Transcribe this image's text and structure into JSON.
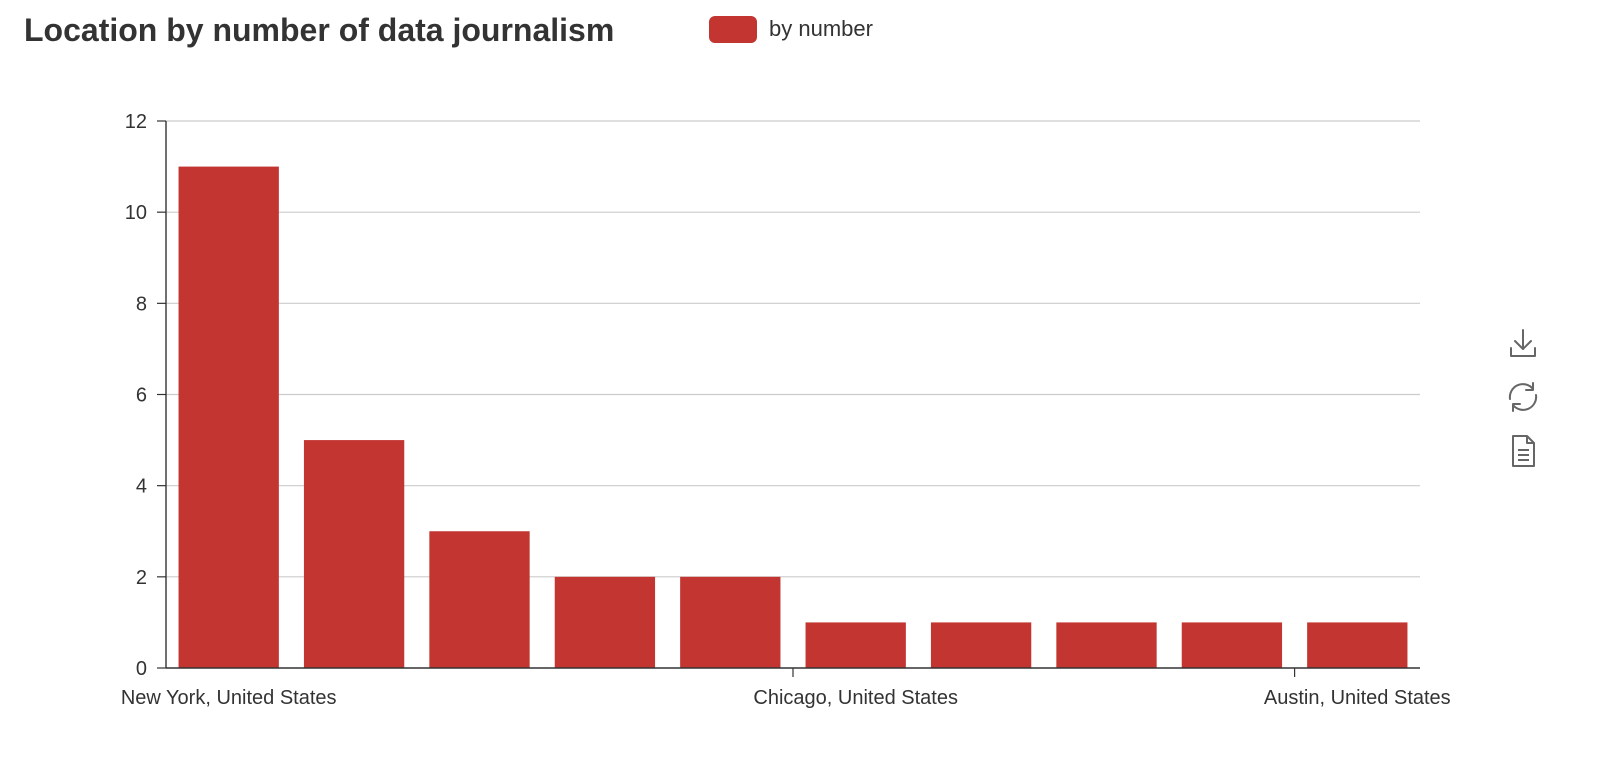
{
  "chart_data": {
    "type": "bar",
    "title": "Location by number of data journalism",
    "xlabel": "",
    "ylabel": "",
    "categories": [
      "New York, United States",
      "",
      "",
      "",
      "Chicago, United States",
      "",
      "",
      "",
      "Austin, United States",
      ""
    ],
    "series": [
      {
        "name": "by number",
        "values": [
          11,
          5,
          3,
          2,
          2,
          1,
          1,
          1,
          1,
          1
        ],
        "color": "#c23531"
      }
    ],
    "ylim": [
      0,
      12
    ],
    "yticks": [
      0,
      2,
      4,
      6,
      8,
      10,
      12
    ],
    "xtick_labels": [
      "New York, United States",
      "Chicago, United States",
      "Austin, United States"
    ],
    "grid": "horizontal",
    "legend_position": "top"
  },
  "toolbox": {
    "items": [
      {
        "name": "download-icon"
      },
      {
        "name": "refresh-icon"
      },
      {
        "name": "data-view-icon"
      }
    ]
  }
}
